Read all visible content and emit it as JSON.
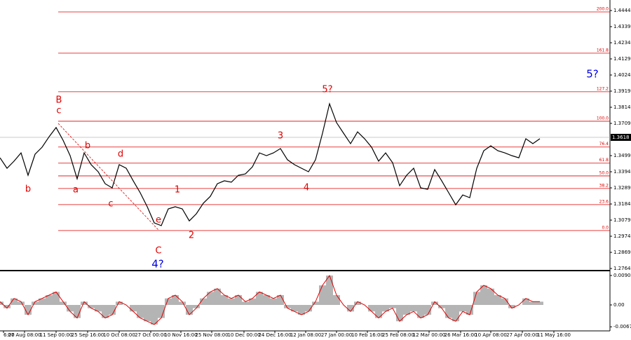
{
  "chart_data": [
    {
      "type": "line",
      "xlim": [
        0,
        87
      ],
      "ylim": [
        1.27549,
        1.45125
      ],
      "yticks": [
        1.4444,
        1.4339,
        1.4234,
        1.4129,
        1.4024,
        1.3919,
        1.3814,
        1.3709,
        1.3499,
        1.3394,
        1.3289,
        1.3184,
        1.3079,
        1.2974,
        1.2869,
        1.2764
      ],
      "xticks": [
        {
          "value": 0.5,
          "label": "6:00"
        },
        {
          "value": 3.5,
          "label": "27 Aug 08:00"
        },
        {
          "value": 8,
          "label": "11 Sep 00:00"
        },
        {
          "value": 12.5,
          "label": "25 Sep 16:00"
        },
        {
          "value": 17,
          "label": "10 Oct 08:00"
        },
        {
          "value": 21.5,
          "label": "27 Oct 00:00"
        },
        {
          "value": 25.8,
          "label": "10 Nov 16:00"
        },
        {
          "value": 30.2,
          "label": "25 Nov 08:00"
        },
        {
          "value": 34.8,
          "label": "10 Dec 00:00"
        },
        {
          "value": 39.2,
          "label": "24 Dec 16:00"
        },
        {
          "value": 43.6,
          "label": "12 Jan 08:00"
        },
        {
          "value": 48,
          "label": "27 Jan 00:00"
        },
        {
          "value": 52.4,
          "label": "10 Feb 16:00"
        },
        {
          "value": 56.8,
          "label": "25 Feb 08:00"
        },
        {
          "value": 61.2,
          "label": "12 Mar 00:00"
        },
        {
          "value": 65.7,
          "label": "26 Mar 16:00"
        },
        {
          "value": 70,
          "label": "10 Apr 08:00"
        },
        {
          "value": 74.5,
          "label": "27 Apr 00:00"
        },
        {
          "value": 79,
          "label": "11 May 16:00"
        }
      ],
      "last_price": 1.3618,
      "color": "#000000",
      "values": [
        1.3485,
        1.3417,
        1.3463,
        1.3517,
        1.3371,
        1.3508,
        1.3554,
        1.3622,
        1.3682,
        1.3599,
        1.3499,
        1.3348,
        1.3517,
        1.344,
        1.3394,
        1.3316,
        1.3289,
        1.344,
        1.3417,
        1.3335,
        1.3257,
        1.3166,
        1.3061,
        1.3043,
        1.3152,
        1.3166,
        1.3152,
        1.3074,
        1.312,
        1.3189,
        1.3234,
        1.3316,
        1.3335,
        1.3326,
        1.3371,
        1.338,
        1.3426,
        1.3517,
        1.3499,
        1.3517,
        1.3545,
        1.3472,
        1.344,
        1.3417,
        1.3394,
        1.3472,
        1.3645,
        1.3837,
        1.3714,
        1.3645,
        1.3577,
        1.3654,
        1.3609,
        1.3554,
        1.3463,
        1.3517,
        1.3453,
        1.3303,
        1.3371,
        1.3417,
        1.3289,
        1.328,
        1.3408,
        1.3335,
        1.3257,
        1.3179,
        1.3243,
        1.3225,
        1.3417,
        1.3531,
        1.3563,
        1.3531,
        1.3517,
        1.3499,
        1.3485,
        1.3609,
        1.3577,
        1.3609
      ],
      "fib_levels": [
        {
          "label": "200.0",
          "price": 1.4435
        },
        {
          "label": "161.8",
          "price": 1.4166
        },
        {
          "label": "127.2",
          "price": 1.3915
        },
        {
          "label": "100.0",
          "price": 1.3723
        },
        {
          "label": "76.4",
          "price": 1.3555
        },
        {
          "label": "61.8",
          "price": 1.345
        },
        {
          "label": "50.0",
          "price": 1.3367
        },
        {
          "label": "38.2",
          "price": 1.3285
        },
        {
          "label": "23.6",
          "price": 1.318
        },
        {
          "label": "0.0",
          "price": 1.3011
        }
      ],
      "fib_color": "#e00000",
      "annotations": [
        {
          "text": "b",
          "color": "#e00000"
        },
        {
          "text": "B",
          "color": "#e00000"
        },
        {
          "text": "c",
          "color": "#e00000"
        },
        {
          "text": "b",
          "color": "#e00000"
        },
        {
          "text": "a",
          "color": "#e00000"
        },
        {
          "text": "d",
          "color": "#e00000"
        },
        {
          "text": "c",
          "color": "#e00000"
        },
        {
          "text": "e",
          "color": "#e00000"
        },
        {
          "text": "C",
          "color": "#e00000"
        },
        {
          "text": "4?",
          "color": "#0000e0"
        },
        {
          "text": "1",
          "color": "#e00000"
        },
        {
          "text": "2",
          "color": "#e00000"
        },
        {
          "text": "3",
          "color": "#e00000"
        },
        {
          "text": "4",
          "color": "#e00000"
        },
        {
          "text": "5?",
          "color": "#e00000"
        },
        {
          "text": "5?",
          "color": "#0000e0"
        }
      ]
    },
    {
      "type": "bar",
      "ylim": [
        -0.00795,
        0.01009
      ],
      "yticks": [
        {
          "value": 0.00902,
          "label": "0.00902"
        },
        {
          "value": 0,
          "label": "0.00"
        },
        {
          "value": -0.0067,
          "label": "-0.00670"
        }
      ],
      "color": "#b4b4b4",
      "line_color": "#e00000",
      "values": [
        0.001,
        -0.001,
        0.002,
        0.001,
        -0.003,
        0.001,
        0.002,
        0.003,
        0.004,
        0.001,
        -0.002,
        -0.004,
        0.001,
        -0.001,
        -0.002,
        -0.004,
        -0.003,
        0.001,
        0.0,
        -0.002,
        -0.004,
        -0.005,
        -0.006,
        -0.004,
        0.002,
        0.003,
        0.001,
        -0.003,
        -0.001,
        0.002,
        0.004,
        0.005,
        0.003,
        0.002,
        0.003,
        0.001,
        0.002,
        0.004,
        0.003,
        0.002,
        0.003,
        -0.001,
        -0.002,
        -0.003,
        -0.002,
        0.001,
        0.006,
        0.009,
        0.003,
        0.0,
        -0.002,
        0.001,
        0.0,
        -0.002,
        -0.004,
        -0.002,
        -0.001,
        -0.005,
        -0.003,
        -0.002,
        -0.004,
        -0.003,
        0.001,
        -0.001,
        -0.004,
        -0.005,
        -0.002,
        -0.003,
        0.004,
        0.006,
        0.005,
        0.003,
        0.002,
        -0.001,
        0.0,
        0.002,
        0.001,
        0.001
      ]
    }
  ]
}
